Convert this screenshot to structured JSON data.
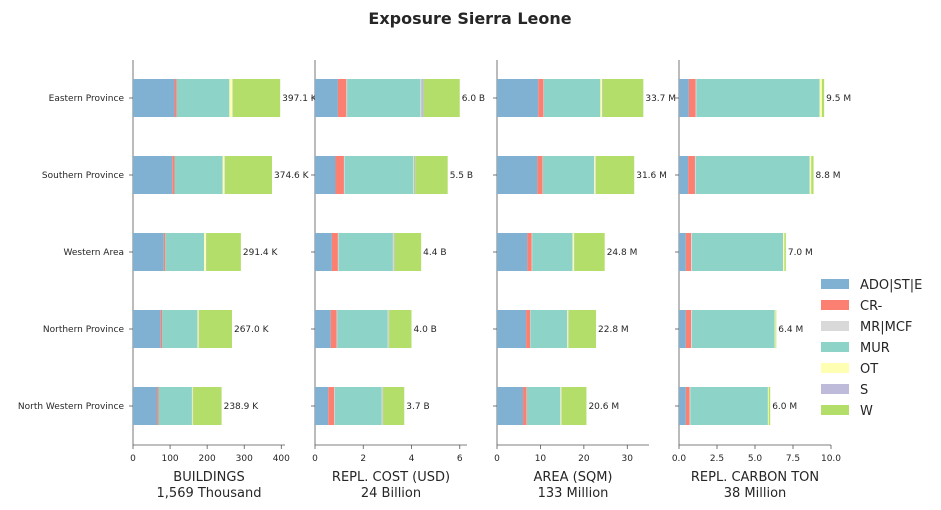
{
  "title": "Exposure Sierra Leone",
  "chart_data": {
    "type": "bar",
    "orientation": "horizontal",
    "stacked": true,
    "categories": [
      "Eastern Province",
      "Southern Province",
      "Western Area",
      "Northern Province",
      "North Western Province"
    ],
    "legend": {
      "placement": "right",
      "entries": [
        {
          "name": "ADO|ST|E",
          "color": "#80b1d3"
        },
        {
          "name": "CR-",
          "color": "#fb8072"
        },
        {
          "name": "MR|MCF",
          "color": "#d9d9d9"
        },
        {
          "name": "MUR",
          "color": "#8dd3c7"
        },
        {
          "name": "OT",
          "color": "#ffffb3"
        },
        {
          "name": "S",
          "color": "#bebada"
        },
        {
          "name": "W",
          "color": "#b3de69"
        }
      ]
    },
    "panels": [
      {
        "xlabel": "BUILDINGS",
        "total_label": "1,569 Thousand",
        "xlim": [
          0,
          410
        ],
        "xticks": [
          0,
          100,
          200,
          300,
          400
        ],
        "xtick_labels": [
          "0",
          "100",
          "200",
          "300",
          "400"
        ],
        "segments": {
          "ADO|ST|E": [
            112,
            106,
            83,
            75,
            65
          ],
          "CR-": [
            6,
            6,
            4,
            4,
            4
          ],
          "MR|MCF": [
            0,
            0,
            0,
            0,
            0
          ],
          "MUR": [
            142,
            130,
            105,
            95,
            90
          ],
          "OT": [
            8,
            5,
            5,
            3,
            2
          ],
          "S": [
            1,
            1,
            1,
            1,
            1
          ],
          "W": [
            128,
            127,
            93,
            89,
            77
          ]
        },
        "totals": [
          "397.1 K",
          "374.6 K",
          "291.4 K",
          "267.0 K",
          "238.9 K"
        ]
      },
      {
        "xlabel": "REPL. COST (USD)",
        "total_label": "24 Billion",
        "xlim": [
          0,
          6.3
        ],
        "xticks": [
          0,
          2,
          4,
          6
        ],
        "xtick_labels": [
          "0",
          "2",
          "4",
          "6"
        ],
        "segments": {
          "ADO|ST|E": [
            0.95,
            0.85,
            0.7,
            0.65,
            0.55
          ],
          "CR-": [
            0.35,
            0.35,
            0.25,
            0.25,
            0.25
          ],
          "MR|MCF": [
            0.03,
            0.03,
            0.03,
            0.02,
            0.02
          ],
          "MUR": [
            3.05,
            2.85,
            2.25,
            2.1,
            1.95
          ],
          "OT": [
            0.02,
            0.02,
            0.02,
            0.02,
            0.02
          ],
          "S": [
            0.1,
            0.05,
            0.05,
            0.03,
            0.03
          ],
          "W": [
            1.5,
            1.35,
            1.1,
            0.93,
            0.88
          ]
        },
        "totals": [
          "6.0 B",
          "5.5 B",
          "4.4 B",
          "4.0 B",
          "3.7 B"
        ]
      },
      {
        "xlabel": "AREA (SQM)",
        "total_label": "133 Million",
        "xlim": [
          0,
          35
        ],
        "xticks": [
          0,
          10,
          20,
          30
        ],
        "xtick_labels": [
          "0",
          "10",
          "20",
          "30"
        ],
        "segments": {
          "ADO|ST|E": [
            9.5,
            9.3,
            7.0,
            6.7,
            6.0
          ],
          "CR-": [
            1.2,
            1.2,
            1.0,
            0.9,
            0.8
          ],
          "MR|MCF": [
            0.1,
            0.1,
            0.1,
            0.1,
            0.1
          ],
          "MUR": [
            13.0,
            11.8,
            9.3,
            8.5,
            7.7
          ],
          "OT": [
            0.4,
            0.3,
            0.3,
            0.2,
            0.2
          ],
          "S": [
            0.1,
            0.1,
            0.1,
            0.1,
            0.1
          ],
          "W": [
            9.4,
            8.8,
            7.0,
            6.3,
            5.7
          ]
        },
        "totals": [
          "33.7 M",
          "31.6 M",
          "24.8 M",
          "22.8 M",
          "20.6 M"
        ]
      },
      {
        "xlabel": "REPL. CARBON TON",
        "total_label": "38 Million",
        "xlim": [
          0,
          10
        ],
        "xticks": [
          0,
          2.5,
          5,
          7.5,
          10
        ],
        "xtick_labels": [
          "0.0",
          "2.5",
          "5.0",
          "7.5",
          "10.0"
        ],
        "segments": {
          "ADO|ST|E": [
            0.65,
            0.6,
            0.45,
            0.45,
            0.45
          ],
          "CR-": [
            0.45,
            0.45,
            0.35,
            0.35,
            0.25
          ],
          "MR|MCF": [
            0.05,
            0.05,
            0.05,
            0.05,
            0.05
          ],
          "MUR": [
            8.1,
            7.5,
            6.0,
            5.45,
            5.1
          ],
          "OT": [
            0.15,
            0.1,
            0.08,
            0.05,
            0.05
          ],
          "S": [
            0.0,
            0.0,
            0.0,
            0.0,
            0.0
          ],
          "W": [
            0.15,
            0.15,
            0.1,
            0.05,
            0.1
          ]
        },
        "totals": [
          "9.5 M",
          "8.8 M",
          "7.0 M",
          "6.4 M",
          "6.0 M"
        ]
      }
    ]
  }
}
